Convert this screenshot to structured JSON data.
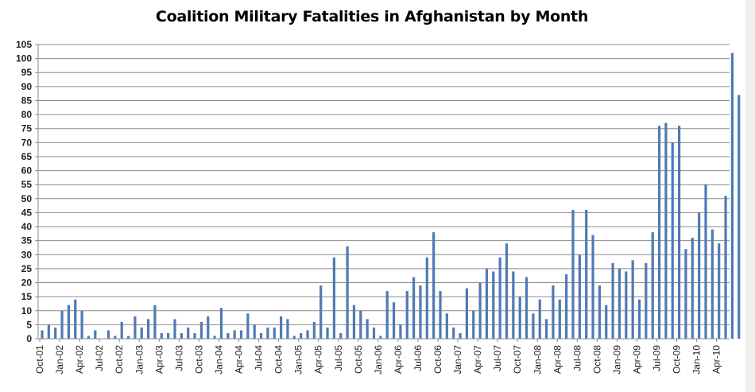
{
  "chart_data": {
    "type": "bar",
    "title": "Coalition Military Fatalities in Afghanistan by Month",
    "xlabel": "",
    "ylabel": "",
    "ylim": [
      0,
      105
    ],
    "yticks": [
      0,
      5,
      10,
      15,
      20,
      25,
      30,
      35,
      40,
      45,
      50,
      55,
      60,
      65,
      70,
      75,
      80,
      85,
      90,
      95,
      100,
      105
    ],
    "grid": true,
    "legend": "none",
    "bar_color": "#4f7ab3",
    "x_tick_labels": [
      "Oct-01",
      "Jan-02",
      "Apr-02",
      "Jul-02",
      "Oct-02",
      "Jan-03",
      "Apr-03",
      "Jul-03",
      "Oct-03",
      "Jan-04",
      "Apr-04",
      "Jul-04",
      "Oct-04",
      "Jan-05",
      "Apr-05",
      "Jul-05",
      "Oct-05",
      "Jan-06",
      "Apr-06",
      "Jul-06",
      "Oct-06",
      "Jan-07",
      "Apr-07",
      "Jul-07",
      "Oct-07",
      "Jan-08",
      "Apr-08",
      "Jul-08",
      "Oct-08",
      "Jan-09",
      "Apr-09",
      "Jul-09",
      "Oct-09",
      "Jan-10",
      "Apr-10"
    ],
    "categories": [
      "Oct-01",
      "Nov-01",
      "Dec-01",
      "Jan-02",
      "Feb-02",
      "Mar-02",
      "Apr-02",
      "May-02",
      "Jun-02",
      "Jul-02",
      "Aug-02",
      "Sep-02",
      "Oct-02",
      "Nov-02",
      "Dec-02",
      "Jan-03",
      "Feb-03",
      "Mar-03",
      "Apr-03",
      "May-03",
      "Jun-03",
      "Jul-03",
      "Aug-03",
      "Sep-03",
      "Oct-03",
      "Nov-03",
      "Dec-03",
      "Jan-04",
      "Feb-04",
      "Mar-04",
      "Apr-04",
      "May-04",
      "Jun-04",
      "Jul-04",
      "Aug-04",
      "Sep-04",
      "Oct-04",
      "Nov-04",
      "Dec-04",
      "Jan-05",
      "Feb-05",
      "Mar-05",
      "Apr-05",
      "May-05",
      "Jun-05",
      "Jul-05",
      "Aug-05",
      "Sep-05",
      "Oct-05",
      "Nov-05",
      "Dec-05",
      "Jan-06",
      "Feb-06",
      "Mar-06",
      "Apr-06",
      "May-06",
      "Jun-06",
      "Jul-06",
      "Aug-06",
      "Sep-06",
      "Oct-06",
      "Nov-06",
      "Dec-06",
      "Jan-07",
      "Feb-07",
      "Mar-07",
      "Apr-07",
      "May-07",
      "Jun-07",
      "Jul-07",
      "Aug-07",
      "Sep-07",
      "Oct-07",
      "Nov-07",
      "Dec-07",
      "Jan-08",
      "Feb-08",
      "Mar-08",
      "Apr-08",
      "May-08",
      "Jun-08",
      "Jul-08",
      "Aug-08",
      "Sep-08",
      "Oct-08",
      "Nov-08",
      "Dec-08",
      "Jan-09",
      "Feb-09",
      "Mar-09",
      "Apr-09",
      "May-09",
      "Jun-09",
      "Jul-09",
      "Aug-09",
      "Sep-09",
      "Oct-09",
      "Nov-09",
      "Dec-09",
      "Jan-10",
      "Feb-10",
      "Mar-10",
      "Apr-10",
      "May-10",
      "Jun-10",
      "Jul-10"
    ],
    "values": [
      3,
      5,
      4,
      10,
      12,
      14,
      10,
      1,
      3,
      0,
      3,
      1,
      6,
      1,
      8,
      4,
      7,
      12,
      2,
      2,
      7,
      2,
      4,
      2,
      6,
      8,
      1,
      11,
      2,
      3,
      3,
      9,
      5,
      2,
      4,
      4,
      8,
      7,
      1,
      2,
      3,
      6,
      19,
      4,
      29,
      2,
      33,
      12,
      10,
      7,
      4,
      1,
      17,
      13,
      5,
      17,
      22,
      19,
      29,
      38,
      17,
      9,
      4,
      2,
      18,
      10,
      20,
      25,
      24,
      29,
      34,
      24,
      15,
      22,
      9,
      14,
      7,
      19,
      14,
      23,
      46,
      30,
      46,
      37,
      19,
      12,
      27,
      25,
      24,
      28,
      14,
      27,
      38,
      76,
      77,
      70,
      76,
      32,
      36,
      45,
      55,
      39,
      34,
      51,
      102,
      87
    ]
  }
}
